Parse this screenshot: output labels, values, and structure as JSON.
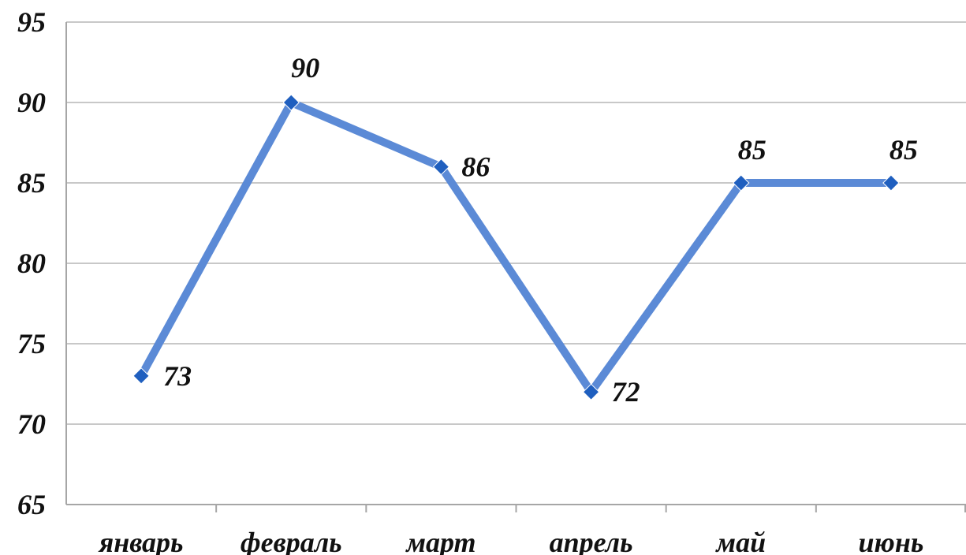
{
  "chart_data": {
    "type": "line",
    "title": "",
    "xlabel": "",
    "ylabel": "",
    "categories": [
      "январь",
      "февраль",
      "март",
      "апрель",
      "май",
      "июнь"
    ],
    "series": [
      {
        "values": [
          73,
          90,
          86,
          72,
          85,
          85
        ],
        "color": "#5b8ad6",
        "marker_color": "#1f5fbf",
        "data_labels": [
          "73",
          "90",
          "86",
          "72",
          "85",
          "85"
        ]
      }
    ],
    "ylim": [
      65,
      95
    ],
    "yticks": [
      65,
      70,
      75,
      80,
      85,
      90,
      95
    ],
    "ytick_labels": [
      "65",
      "70",
      "75",
      "80",
      "85",
      "90",
      "95"
    ],
    "grid": true,
    "gridline_color": "#c8c8c8",
    "legend": "none"
  }
}
